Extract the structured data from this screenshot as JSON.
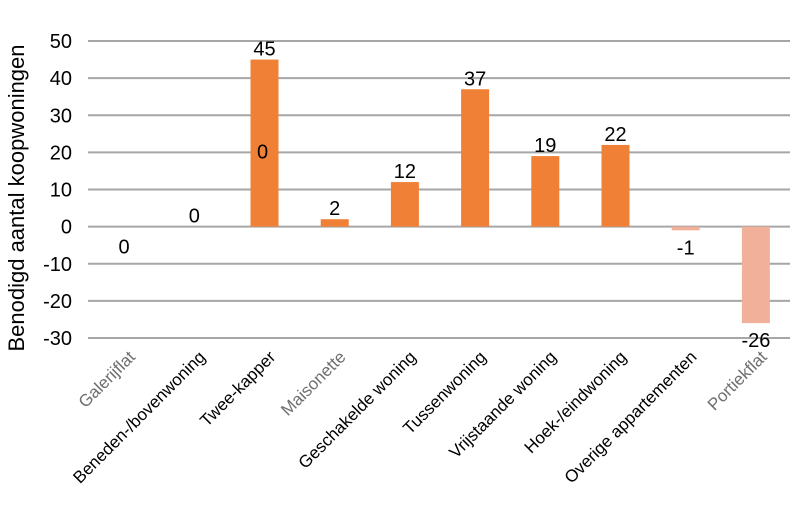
{
  "chart_data": {
    "type": "bar",
    "ylabel": "Benodigd aantal koopwoningen",
    "ylim": [
      -30,
      50
    ],
    "yticks": [
      50,
      40,
      30,
      20,
      10,
      0,
      -10,
      -20,
      -30
    ],
    "grid": true,
    "categories": [
      "Galerijflat",
      "Beneden-/bovenwoning",
      "Twee-kapper",
      "Maisonette",
      "Geschakelde woning",
      "Tussenwoning",
      "Vrijstaande woning",
      "Hoek-/eindwoning",
      "Overige appartementen",
      "Portiekflat"
    ],
    "values": [
      0,
      0,
      45,
      2,
      12,
      37,
      19,
      22,
      -1,
      -26
    ],
    "extra_labels": [
      {
        "category": "Twee-kapper",
        "text": "0"
      }
    ],
    "colors": {
      "positive": "#f08036",
      "negative": "#f0b09a",
      "tick_dark": "#000000",
      "tick_light": "#6f6f6f"
    },
    "tick_label_light": [
      true,
      false,
      false,
      true,
      false,
      false,
      false,
      false,
      false,
      true
    ]
  }
}
